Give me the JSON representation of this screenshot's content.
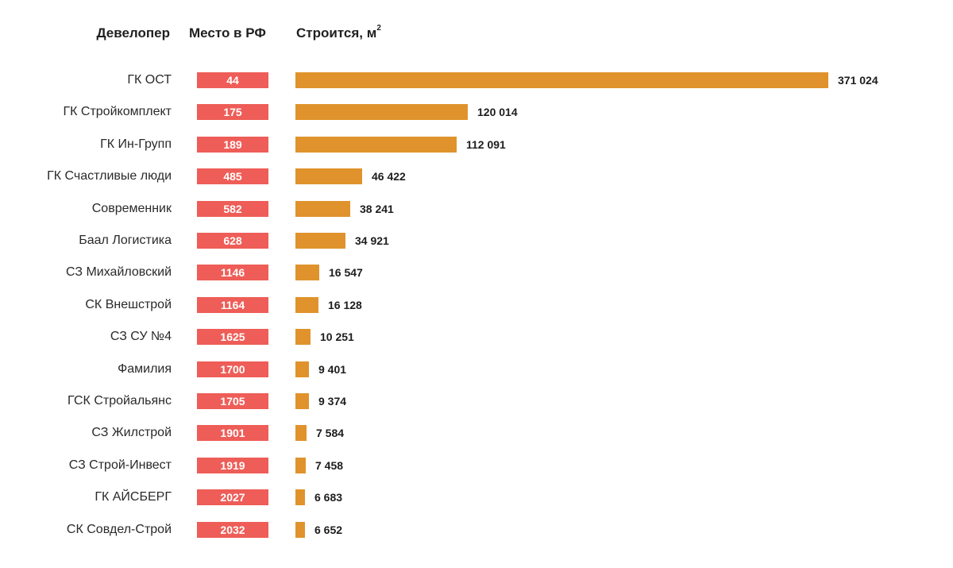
{
  "headers": {
    "developer": "Девелопер",
    "rank": "Место в РФ",
    "area": "Строится, м",
    "area_sup": "2"
  },
  "colors": {
    "rank_box": "#ee5d57",
    "bar": "#e0932c"
  },
  "chart_data": {
    "type": "bar",
    "orientation": "horizontal",
    "title": "",
    "xlabel": "Строится, м²",
    "categories": [
      "ГК ОСТ",
      "ГК Стройкомплект",
      "ГК Ин-Групп",
      "ГК Счастливые люди",
      "Современник",
      "Баал Логистика",
      "СЗ Михайловский",
      "СК Внешстрой",
      "СЗ СУ №4",
      "Фамилия",
      "ГСК Стройальянс",
      "СЗ Жилстрой",
      "СЗ Строй-Инвест",
      "ГК АЙСБЕРГ",
      "СК Совдел-Строй"
    ],
    "ranks": [
      "44",
      "175",
      "189",
      "485",
      "582",
      "628",
      "1146",
      "1164",
      "1625",
      "1700",
      "1705",
      "1901",
      "1919",
      "2027",
      "2032"
    ],
    "values": [
      371024,
      120014,
      112091,
      46422,
      38241,
      34921,
      16547,
      16128,
      10251,
      9401,
      9374,
      7584,
      7458,
      6683,
      6652
    ],
    "value_labels": [
      "371 024",
      "120 014",
      "112 091",
      "46 422",
      "38 241",
      "34 921",
      "16 547",
      "16 128",
      "10 251",
      "9 401",
      "9 374",
      "7 584",
      "7 458",
      "6 683",
      "6 652"
    ]
  }
}
